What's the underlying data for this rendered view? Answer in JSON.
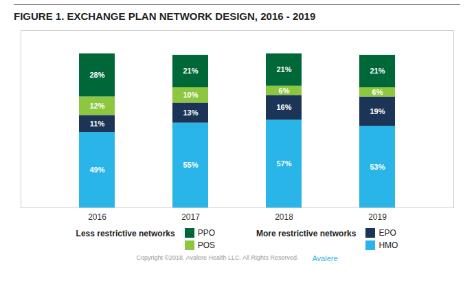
{
  "chart_data": {
    "type": "bar",
    "stacked": true,
    "title": "FIGURE 1. EXCHANGE PLAN NETWORK DESIGN, 2016 - 2019",
    "categories": [
      "2016",
      "2017",
      "2018",
      "2019"
    ],
    "series": [
      {
        "name": "HMO",
        "color": "#29B5E8",
        "values": [
          49,
          55,
          57,
          53
        ],
        "value_labels": [
          "49%",
          "55%",
          "57%",
          "53%"
        ]
      },
      {
        "name": "EPO",
        "color": "#1C3557",
        "values": [
          11,
          13,
          16,
          19
        ],
        "value_labels": [
          "11%",
          "13%",
          "16%",
          "19%"
        ]
      },
      {
        "name": "POS",
        "color": "#8DC63F",
        "values": [
          12,
          10,
          6,
          6
        ],
        "value_labels": [
          "12%",
          "10%",
          "6%",
          "6%"
        ]
      },
      {
        "name": "PPO",
        "color": "#006838",
        "values": [
          28,
          21,
          21,
          21
        ],
        "value_labels": [
          "28%",
          "21%",
          "21%",
          "21%"
        ]
      }
    ],
    "ylim": [
      0,
      115
    ],
    "tick_labels": "x",
    "data_labels": true,
    "grid": false,
    "legend": "bottom",
    "legend_groups": [
      {
        "title": "Less restrictive networks",
        "series": [
          "PPO",
          "POS"
        ]
      },
      {
        "title": "More restrictive networks",
        "series": [
          "EPO",
          "HMO"
        ]
      }
    ],
    "annotations": [
      "Copyright ©2018. Avalere Health LLC. All Rights Reserved.",
      "Avalere"
    ]
  }
}
